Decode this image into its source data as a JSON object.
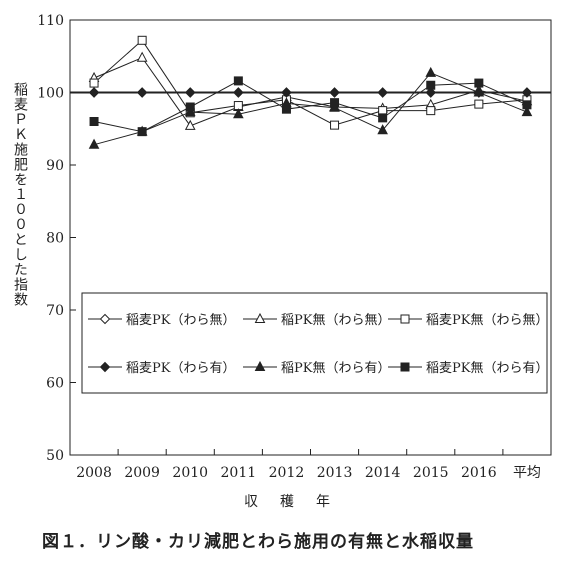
{
  "caption": "図１．リン酸・カリ減肥とわら施用の有無と水稲収量",
  "chart_data": {
    "type": "line",
    "title": "",
    "xlabel": "収穫年",
    "ylabel": "稲麦ＰＫ施肥を１００とした指数",
    "categories": [
      "2008",
      "2009",
      "2010",
      "2011",
      "2012",
      "2013",
      "2014",
      "2015",
      "2016",
      "平均"
    ],
    "ylim": [
      50,
      110
    ],
    "yticks": [
      50,
      60,
      70,
      80,
      90,
      100,
      110
    ],
    "grid": false,
    "legend_placement": "lower-inside-box",
    "series": [
      {
        "name": "稲麦PK（わら無）",
        "marker": "diamond-open",
        "values": [
          100,
          100,
          100,
          100,
          100,
          100,
          100,
          100,
          100,
          100
        ]
      },
      {
        "name": "稲PK無（わら無）",
        "marker": "triangle-open",
        "values": [
          102.0,
          104.8,
          95.4,
          98.0,
          99.4,
          98.0,
          97.8,
          98.3,
          100.3,
          98.8
        ]
      },
      {
        "name": "稲麦PK無（わら無）",
        "marker": "square-open",
        "values": [
          101.3,
          107.2,
          97.2,
          98.2,
          99.0,
          95.5,
          97.5,
          97.5,
          98.4,
          99.0
        ]
      },
      {
        "name": "稲麦PK（わら有）",
        "marker": "diamond-filled",
        "values": [
          100,
          100,
          100,
          100,
          100,
          100,
          100,
          100,
          100,
          100
        ]
      },
      {
        "name": "稲PK無（わら有）",
        "marker": "triangle-filled",
        "values": [
          92.8,
          94.6,
          97.3,
          97.0,
          98.5,
          97.9,
          94.8,
          102.7,
          100.0,
          97.3
        ]
      },
      {
        "name": "稲麦PK無（わら有）",
        "marker": "square-filled",
        "values": [
          96.0,
          94.6,
          98.0,
          101.6,
          97.7,
          98.6,
          96.5,
          101.0,
          101.3,
          98.3
        ]
      }
    ],
    "reference_line": 100
  }
}
